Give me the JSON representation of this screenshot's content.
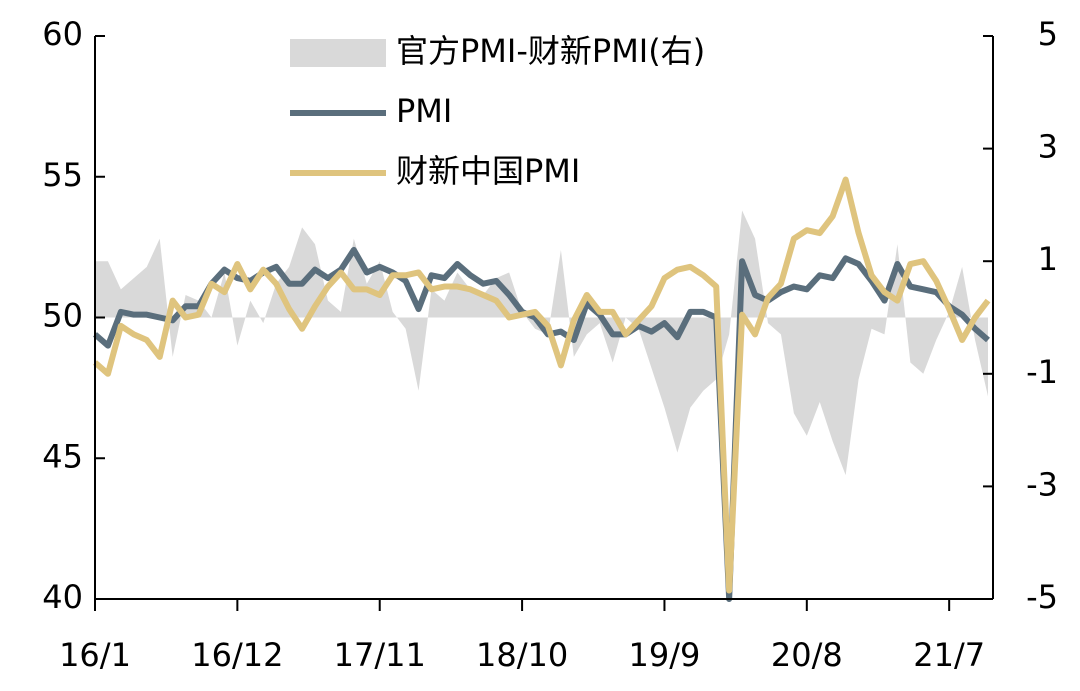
{
  "chart_data": {
    "type": "line",
    "categories": [
      "16/1",
      null,
      null,
      null,
      null,
      null,
      null,
      null,
      null,
      null,
      null,
      "16/12",
      null,
      null,
      null,
      null,
      null,
      null,
      null,
      null,
      null,
      null,
      "17/11",
      null,
      null,
      null,
      null,
      null,
      null,
      null,
      null,
      null,
      null,
      "18/10",
      null,
      null,
      null,
      null,
      null,
      null,
      null,
      null,
      null,
      null,
      "19/9",
      null,
      null,
      null,
      null,
      null,
      null,
      null,
      null,
      null,
      null,
      "20/8",
      null,
      null,
      null,
      null,
      null,
      null,
      null,
      null,
      null,
      null,
      "21/7",
      null,
      null,
      null
    ],
    "series": [
      {
        "name": "官方PMI-财新PMI(右)",
        "kind": "area",
        "axis": "y2",
        "color": "#d9d9d9",
        "values": [
          1.0,
          1.0,
          0.5,
          0.7,
          0.9,
          1.4,
          -0.7,
          0.4,
          0.3,
          0.0,
          0.8,
          -0.5,
          0.3,
          -0.1,
          0.6,
          0.9,
          1.6,
          1.3,
          0.3,
          0.1,
          1.4,
          0.6,
          1.0,
          0.1,
          -0.2,
          -1.3,
          0.5,
          0.3,
          0.8,
          0.5,
          0.4,
          0.7,
          0.8,
          0.1,
          -0.2,
          -0.3,
          1.2,
          -0.7,
          -0.3,
          -0.1,
          -0.8,
          0.0,
          -0.2,
          -0.9,
          -1.6,
          -2.4,
          -1.6,
          -1.3,
          -1.1,
          -0.3,
          1.9,
          1.4,
          -0.1,
          -0.3,
          -1.7,
          -2.1,
          -1.5,
          -2.2,
          -2.8,
          -1.1,
          -0.2,
          -0.3,
          1.3,
          -0.8,
          -1.0,
          -0.4,
          0.1,
          0.9,
          -0.4,
          -1.4
        ]
      },
      {
        "name": "PMI",
        "kind": "line",
        "color": "#5a6e7c",
        "values": [
          49.4,
          49.0,
          50.2,
          50.1,
          50.1,
          50.0,
          49.9,
          50.4,
          50.4,
          51.2,
          51.7,
          51.4,
          51.3,
          51.6,
          51.8,
          51.2,
          51.2,
          51.7,
          51.4,
          51.7,
          52.4,
          51.6,
          51.8,
          51.6,
          51.3,
          50.3,
          51.5,
          51.4,
          51.9,
          51.5,
          51.2,
          51.3,
          50.8,
          50.2,
          50.0,
          49.4,
          49.5,
          49.2,
          50.5,
          50.1,
          49.4,
          49.4,
          49.7,
          49.5,
          49.8,
          49.3,
          50.2,
          50.2,
          50.0,
          40.0,
          52.0,
          50.8,
          50.6,
          50.9,
          51.1,
          51.0,
          51.5,
          51.4,
          52.1,
          51.9,
          51.3,
          50.6,
          51.9,
          51.1,
          51.0,
          50.9,
          50.4,
          50.1,
          49.6,
          49.2
        ]
      },
      {
        "name": "财新中国PMI",
        "kind": "line",
        "color": "#dfc47e",
        "values": [
          48.4,
          48.0,
          49.7,
          49.4,
          49.2,
          48.6,
          50.6,
          50.0,
          50.1,
          51.2,
          50.9,
          51.9,
          51.0,
          51.7,
          51.2,
          50.3,
          49.6,
          50.4,
          51.1,
          51.6,
          51.0,
          51.0,
          50.8,
          51.5,
          51.5,
          51.6,
          51.0,
          51.1,
          51.1,
          51.0,
          50.8,
          50.6,
          50.0,
          50.1,
          50.2,
          49.7,
          48.3,
          49.9,
          50.8,
          50.2,
          50.2,
          49.4,
          49.9,
          50.4,
          51.4,
          51.7,
          51.8,
          51.5,
          51.1,
          40.3,
          50.1,
          49.4,
          50.7,
          51.2,
          52.8,
          53.1,
          53.0,
          53.6,
          54.9,
          53.0,
          51.5,
          50.9,
          50.6,
          51.9,
          52.0,
          51.3,
          50.3,
          49.2,
          50.0,
          50.6
        ]
      }
    ],
    "ylim": [
      40,
      60
    ],
    "yticks": [
      40,
      45,
      50,
      55,
      60
    ],
    "y2lim": [
      -5,
      5
    ],
    "y2ticks": [
      -5,
      -3,
      -1,
      1,
      3,
      5
    ],
    "grid": false,
    "legend": "top"
  }
}
